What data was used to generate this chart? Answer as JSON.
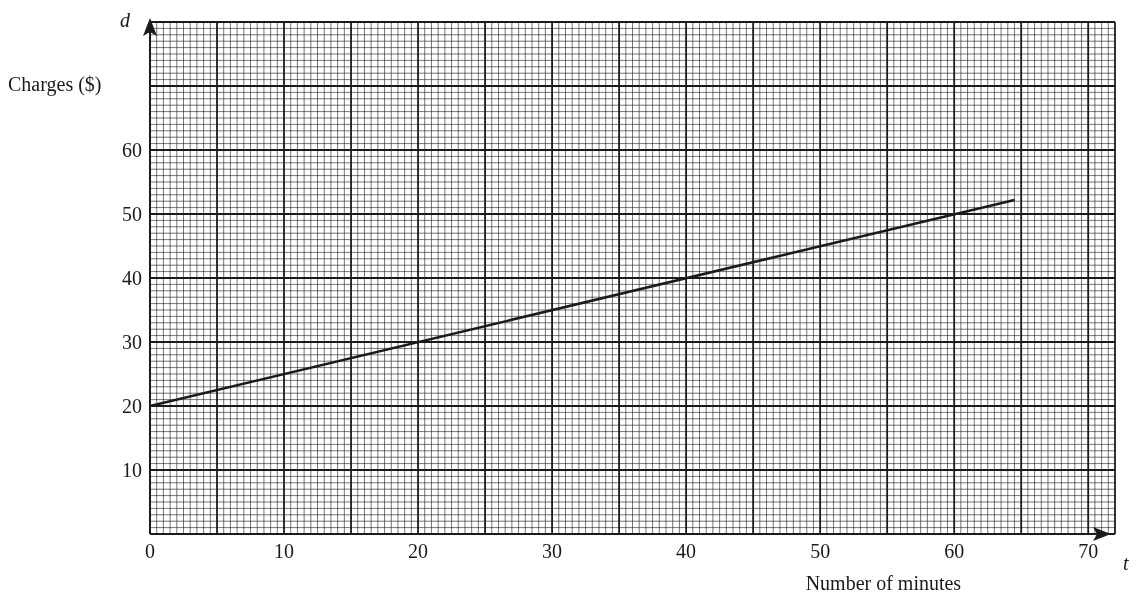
{
  "chart_data": {
    "type": "line",
    "xlabel": "Number of minutes",
    "ylabel": "Charges ($)",
    "annotations": [
      "d",
      "t"
    ],
    "series": [
      {
        "color": "#1a1a1a",
        "x": [
          0,
          64.5
        ],
        "values": [
          20,
          52.2
        ]
      }
    ],
    "xlim": [
      0,
      72
    ],
    "ylim": [
      0,
      80
    ],
    "xticks": [
      0,
      {
        "value": 5,
        "label": null
      },
      10,
      {
        "value": 15,
        "label": null
      },
      20,
      {
        "value": 25,
        "label": null
      },
      30,
      {
        "value": 35,
        "label": null
      },
      40,
      {
        "value": 45,
        "label": null
      },
      50,
      {
        "value": 55,
        "label": null
      },
      60,
      {
        "value": 65,
        "label": null
      },
      70
    ],
    "yticks": [
      {
        "value": 0,
        "label": null
      },
      10,
      20,
      30,
      40,
      50,
      60,
      {
        "value": 70,
        "label": null
      },
      {
        "value": 80,
        "label": null
      }
    ],
    "grid": true,
    "marker": "none",
    "line_style": "solid"
  }
}
